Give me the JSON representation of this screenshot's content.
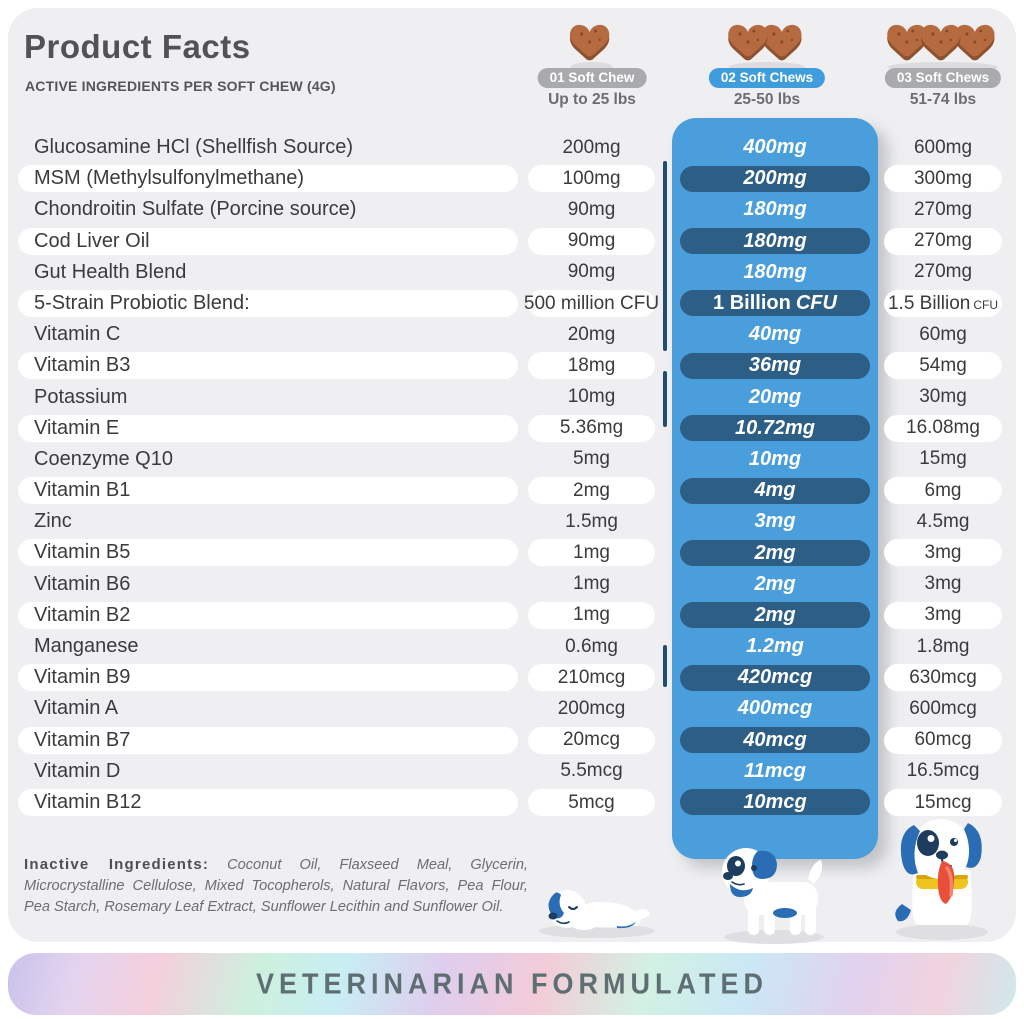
{
  "header": {
    "title": "Product Facts",
    "subtitle": "ACTIVE INGREDIENTS PER SOFT CHEW (4G)"
  },
  "columns": [
    {
      "badge": "01 Soft Chew",
      "weight": "Up to 25 lbs",
      "chews": 1,
      "highlight": false
    },
    {
      "badge": "02 Soft Chews",
      "weight": "25-50 lbs",
      "chews": 2,
      "highlight": true
    },
    {
      "badge": "03 Soft Chews",
      "weight": "51-74 lbs",
      "chews": 3,
      "highlight": false
    }
  ],
  "table": {
    "rows": [
      {
        "label": "Glucosamine HCl (Shellfish Source)",
        "v1": "200mg",
        "v2": "400mg",
        "v3": "600mg"
      },
      {
        "label": "MSM (Methylsulfonylmethane)",
        "v1": "100mg",
        "v2": "200mg",
        "v3": "300mg"
      },
      {
        "label": "Chondroitin Sulfate (Porcine source)",
        "v1": "90mg",
        "v2": "180mg",
        "v3": "270mg"
      },
      {
        "label": "Cod Liver Oil",
        "v1": "90mg",
        "v2": "180mg",
        "v3": "270mg"
      },
      {
        "label": "Gut Health Blend",
        "v1": "90mg",
        "v2": "180mg",
        "v3": "270mg"
      },
      {
        "label": "5-Strain Probiotic Blend:",
        "v1": "500 million CFU",
        "v2_pre": "1 Billion",
        "v2": "CFU",
        "v3": "1.5 Billion",
        "v3_small": "CFU"
      },
      {
        "label": "Vitamin C",
        "v1": "20mg",
        "v2": "40mg",
        "v3": "60mg"
      },
      {
        "label": "Vitamin B3",
        "v1": "18mg",
        "v2": "36mg",
        "v3": "54mg"
      },
      {
        "label": "Potassium",
        "v1": "10mg",
        "v2": "20mg",
        "v3": "30mg"
      },
      {
        "label": "Vitamin E",
        "v1": "5.36mg",
        "v2": "10.72mg",
        "v3": "16.08mg"
      },
      {
        "label": "Coenzyme Q10",
        "v1": "5mg",
        "v2": "10mg",
        "v3": "15mg"
      },
      {
        "label": "Vitamin B1",
        "v1": "2mg",
        "v2": "4mg",
        "v3": "6mg"
      },
      {
        "label": "Zinc",
        "v1": "1.5mg",
        "v2": "3mg",
        "v3": "4.5mg"
      },
      {
        "label": "Vitamin B5",
        "v1": "1mg",
        "v2": "2mg",
        "v3": "3mg"
      },
      {
        "label": "Vitamin B6",
        "v1": "1mg",
        "v2": "2mg",
        "v3": "3mg"
      },
      {
        "label": "Vitamin B2",
        "v1": "1mg",
        "v2": "2mg",
        "v3": "3mg"
      },
      {
        "label": "Manganese",
        "v1": "0.6mg",
        "v2": "1.2mg",
        "v3": "1.8mg"
      },
      {
        "label": "Vitamin B9",
        "v1": "210mcg",
        "v2": "420mcg",
        "v3": "630mcg"
      },
      {
        "label": "Vitamin A",
        "v1": "200mcg",
        "v2": "400mcg",
        "v3": "600mcg"
      },
      {
        "label": "Vitamin B7",
        "v1": "20mcg",
        "v2": "40mcg",
        "v3": "60mcg"
      },
      {
        "label": "Vitamin D",
        "v1": "5.5mcg",
        "v2": "11mcg",
        "v3": "16.5mcg"
      },
      {
        "label": "Vitamin B12",
        "v1": "5mcg",
        "v2": "10mcg",
        "v3": "15mcg"
      }
    ]
  },
  "inactive": {
    "label": "Inactive Ingredients:",
    "text": "Coconut Oil, Flaxseed Meal, Glycerin, Microcrystalline Cellulose, Mixed Tocopherols, Natural Flavors, Pea Flour, Pea Starch, Rosemary Leaf Extract, Sunflower Lecithin and Sunflower Oil."
  },
  "banner": {
    "text": "VETERINARIAN FORMULATED"
  },
  "colors": {
    "card_background": "#efeff1",
    "accent_blue": "#4a9edb",
    "navy_pill": "#2d5e86",
    "badge_gray": "#a9aaac",
    "badge_blue": "#3f9ddb",
    "chew_brown": "#b56a3f",
    "dog_blue": "#2a6db5",
    "collar_yellow": "#f0c420",
    "banner_text": "#5e6e72"
  }
}
